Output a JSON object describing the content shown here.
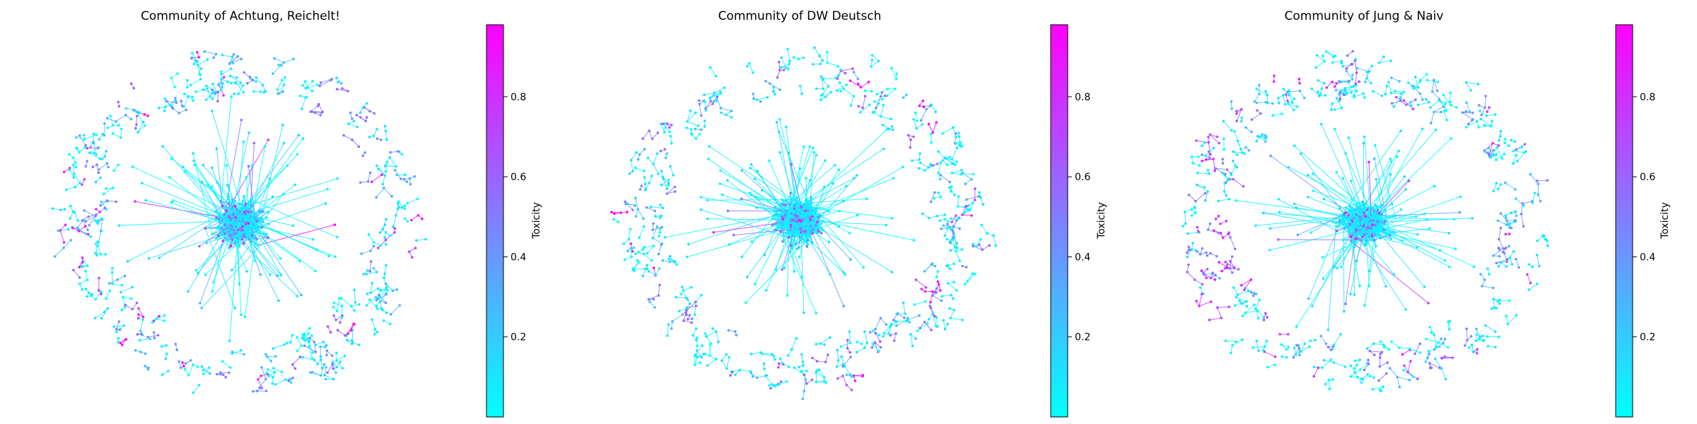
{
  "figure": {
    "colormap": {
      "name": "cool",
      "low": "#00ffff",
      "high": "#ff00ff"
    },
    "node_color_default": "#00ffff"
  },
  "chart_data": [
    {
      "type": "network",
      "title": "Community of Achtung, Reichelt!",
      "colorbar": {
        "label": "Toxicity",
        "range": [
          0.0,
          0.98
        ],
        "ticks": [
          0.2,
          0.4,
          0.6,
          0.8
        ]
      },
      "layout": "dense central cluster with ring of small outer components",
      "seed": 11
    },
    {
      "type": "network",
      "title": "Community of DW Deutsch",
      "colorbar": {
        "label": "Toxicity",
        "range": [
          0.0,
          0.98
        ],
        "ticks": [
          0.2,
          0.4,
          0.6,
          0.8
        ]
      },
      "layout": "dense central cluster with ring of small outer components",
      "seed": 23
    },
    {
      "type": "network",
      "title": "Community of Jung & Naiv",
      "colorbar": {
        "label": "Toxicity",
        "range": [
          0.0,
          0.98
        ],
        "ticks": [
          0.2,
          0.4,
          0.6,
          0.8
        ]
      },
      "layout": "dense central cluster with ring of small outer components",
      "seed": 37
    }
  ]
}
